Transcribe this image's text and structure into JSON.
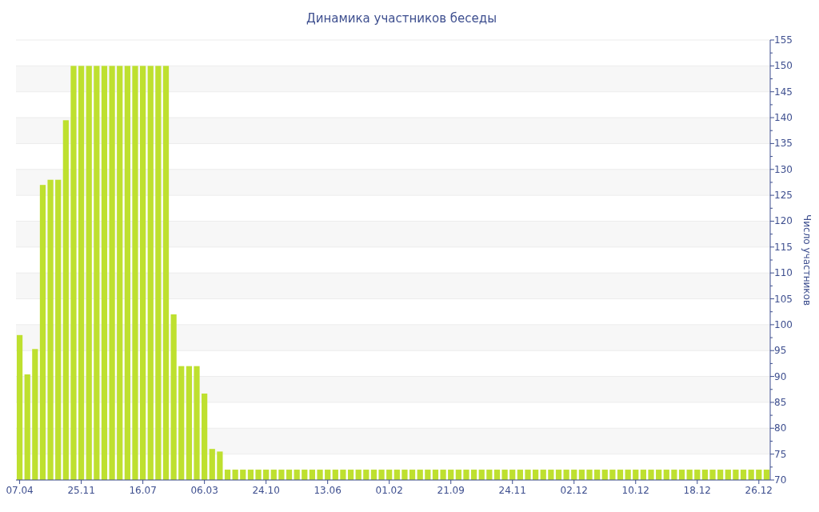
{
  "chart_data": {
    "type": "bar",
    "title": "Динамика участников беседы",
    "ylabel": "Число участников",
    "categories": [
      "07.04",
      null,
      null,
      null,
      null,
      null,
      null,
      null,
      "25.11",
      null,
      null,
      null,
      null,
      null,
      null,
      null,
      "16.07",
      null,
      null,
      null,
      null,
      null,
      null,
      null,
      "06.03",
      null,
      null,
      null,
      null,
      null,
      null,
      null,
      "24.10",
      null,
      null,
      null,
      null,
      null,
      null,
      null,
      "13.06",
      null,
      null,
      null,
      null,
      null,
      null,
      null,
      "01.02",
      null,
      null,
      null,
      null,
      null,
      null,
      null,
      "21.09",
      null,
      null,
      null,
      null,
      null,
      null,
      null,
      "24.11",
      null,
      null,
      null,
      null,
      null,
      null,
      null,
      "02.12",
      null,
      null,
      null,
      null,
      null,
      null,
      null,
      "10.12",
      null,
      null,
      null,
      null,
      null,
      null,
      null,
      "18.12",
      null,
      null,
      null,
      null,
      null,
      null,
      null,
      "26.12",
      null
    ],
    "values": [
      98,
      90.4,
      95.3,
      127,
      128,
      128,
      139.5,
      150,
      150,
      150,
      150,
      150,
      150,
      150,
      150,
      150,
      150,
      150,
      150,
      150,
      102,
      92,
      92,
      92,
      86.7,
      76,
      75.5,
      72,
      72,
      72,
      72,
      72,
      72,
      72,
      72,
      72,
      72,
      72,
      72,
      72,
      72,
      72,
      72,
      72,
      72,
      72,
      72,
      72,
      72,
      72,
      72,
      72,
      72,
      72,
      72,
      72,
      72,
      72,
      72,
      72,
      72,
      72,
      72,
      72,
      72,
      72,
      72,
      72,
      72,
      72,
      72,
      72,
      72,
      72,
      72,
      72,
      72,
      72,
      72,
      72,
      72,
      72,
      72,
      72,
      72,
      72,
      72,
      72,
      72,
      72,
      72,
      72,
      72,
      72,
      72,
      72,
      72,
      72
    ],
    "color": "#bee02f",
    "ylim": [
      70,
      155
    ],
    "yticks": [
      70,
      75,
      80,
      85,
      90,
      95,
      100,
      105,
      110,
      115,
      120,
      125,
      130,
      135,
      140,
      145,
      150,
      155
    ],
    "grid": "y"
  }
}
